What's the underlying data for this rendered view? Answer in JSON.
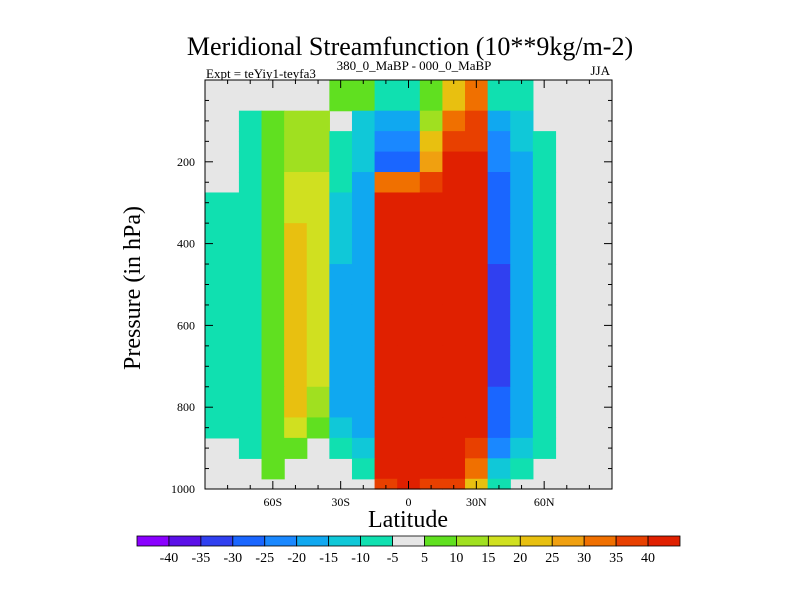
{
  "chart_data": {
    "type": "heatmap",
    "title": "Meridional Streamfunction (10**9kg/m-2)",
    "subtitle_left": "Expt = teYiy1-teyfa3",
    "subtitle_center": "380_0_MaBP - 000_0_MaBP",
    "subtitle_right": "JJA",
    "xlabel": "Latitude",
    "ylabel": "Pressure (in hPa)",
    "x_range": [
      -90,
      90
    ],
    "y_range": [
      1000,
      0
    ],
    "x_ticks": [
      {
        "value": -60,
        "label": "60S"
      },
      {
        "value": -30,
        "label": "30S"
      },
      {
        "value": 0,
        "label": "0"
      },
      {
        "value": 30,
        "label": "30N"
      },
      {
        "value": 60,
        "label": "60N"
      }
    ],
    "y_ticks": [
      {
        "value": 200,
        "label": "200"
      },
      {
        "value": 400,
        "label": "400"
      },
      {
        "value": 600,
        "label": "600"
      },
      {
        "value": 800,
        "label": "800"
      },
      {
        "value": 1000,
        "label": "1000"
      }
    ],
    "colorbar_levels": [
      -40,
      -35,
      -30,
      -25,
      -20,
      -15,
      -10,
      -5,
      5,
      10,
      15,
      20,
      25,
      30,
      35,
      40
    ],
    "colorbar_labels": [
      "-40",
      "-35",
      "-30",
      "-25",
      "-20",
      "-15",
      "-10",
      "-5",
      "5",
      "10",
      "15",
      "20",
      "25",
      "30",
      "35",
      "40"
    ],
    "colorbar_colors": [
      "#8a00ff",
      "#5b10e8",
      "#3040f0",
      "#1a66ff",
      "#1a88ff",
      "#10a8f0",
      "#10c8d8",
      "#10e0b0",
      "#e6e6e6",
      "#60e020",
      "#a0e020",
      "#d0e020",
      "#e8c010",
      "#f0a010",
      "#f07000",
      "#e84000",
      "#e02000"
    ],
    "background_color": "#e6e6e6",
    "latitudes": [
      -80,
      -70,
      -60,
      -50,
      -40,
      -30,
      -20,
      -10,
      0,
      10,
      20,
      30,
      40,
      50,
      60,
      70,
      80
    ],
    "pressures": [
      50,
      100,
      150,
      200,
      250,
      300,
      400,
      500,
      600,
      700,
      800,
      850,
      900,
      950,
      1000
    ],
    "values": [
      [
        0,
        0,
        0,
        2,
        4,
        6,
        8,
        -6,
        -10,
        8,
        20,
        30,
        -10,
        -8,
        0,
        0,
        0
      ],
      [
        0,
        -6,
        5,
        10,
        12,
        -4,
        -12,
        -20,
        -18,
        10,
        30,
        35,
        -18,
        -12,
        -4,
        0,
        0
      ],
      [
        0,
        -6,
        6,
        12,
        14,
        -6,
        -14,
        -24,
        -22,
        20,
        38,
        38,
        -22,
        -14,
        -6,
        0,
        0
      ],
      [
        0,
        -7,
        6,
        14,
        14,
        -8,
        -14,
        -28,
        -26,
        28,
        40,
        40,
        -24,
        -16,
        -6,
        0,
        0
      ],
      [
        -4,
        -8,
        7,
        16,
        15,
        -10,
        -16,
        30,
        30,
        36,
        44,
        44,
        -26,
        -16,
        -6,
        0,
        0
      ],
      [
        -6,
        -8,
        8,
        18,
        16,
        -12,
        -16,
        40,
        42,
        40,
        46,
        44,
        -28,
        -18,
        -8,
        0,
        0
      ],
      [
        -7,
        -8,
        8,
        22,
        16,
        -14,
        -18,
        44,
        46,
        44,
        48,
        46,
        -30,
        -18,
        -8,
        0,
        0
      ],
      [
        -7,
        -8,
        8,
        24,
        16,
        -16,
        -20,
        46,
        48,
        44,
        48,
        46,
        -32,
        -20,
        -8,
        0,
        0
      ],
      [
        -7,
        -8,
        8,
        24,
        16,
        -18,
        -20,
        46,
        48,
        46,
        48,
        46,
        -32,
        -20,
        -8,
        0,
        0
      ],
      [
        -7,
        -8,
        8,
        24,
        16,
        -18,
        -20,
        46,
        48,
        46,
        48,
        46,
        -32,
        -20,
        -8,
        0,
        0
      ],
      [
        -7,
        -8,
        8,
        20,
        14,
        -18,
        -18,
        46,
        48,
        46,
        48,
        44,
        -30,
        -18,
        -8,
        0,
        0
      ],
      [
        -6,
        -7,
        8,
        16,
        8,
        -14,
        -16,
        46,
        48,
        46,
        46,
        40,
        -26,
        -16,
        -7,
        0,
        0
      ],
      [
        -4,
        -6,
        6,
        8,
        0,
        -8,
        -12,
        44,
        46,
        44,
        44,
        36,
        -22,
        -14,
        -6,
        0,
        0
      ],
      [
        0,
        0,
        5,
        0,
        0,
        -4,
        -8,
        42,
        44,
        42,
        42,
        30,
        -14,
        -8,
        0,
        0,
        0
      ],
      [
        0,
        0,
        0,
        0,
        0,
        0,
        -4,
        38,
        40,
        38,
        38,
        24,
        -8,
        -4,
        0,
        0,
        0
      ]
    ]
  }
}
